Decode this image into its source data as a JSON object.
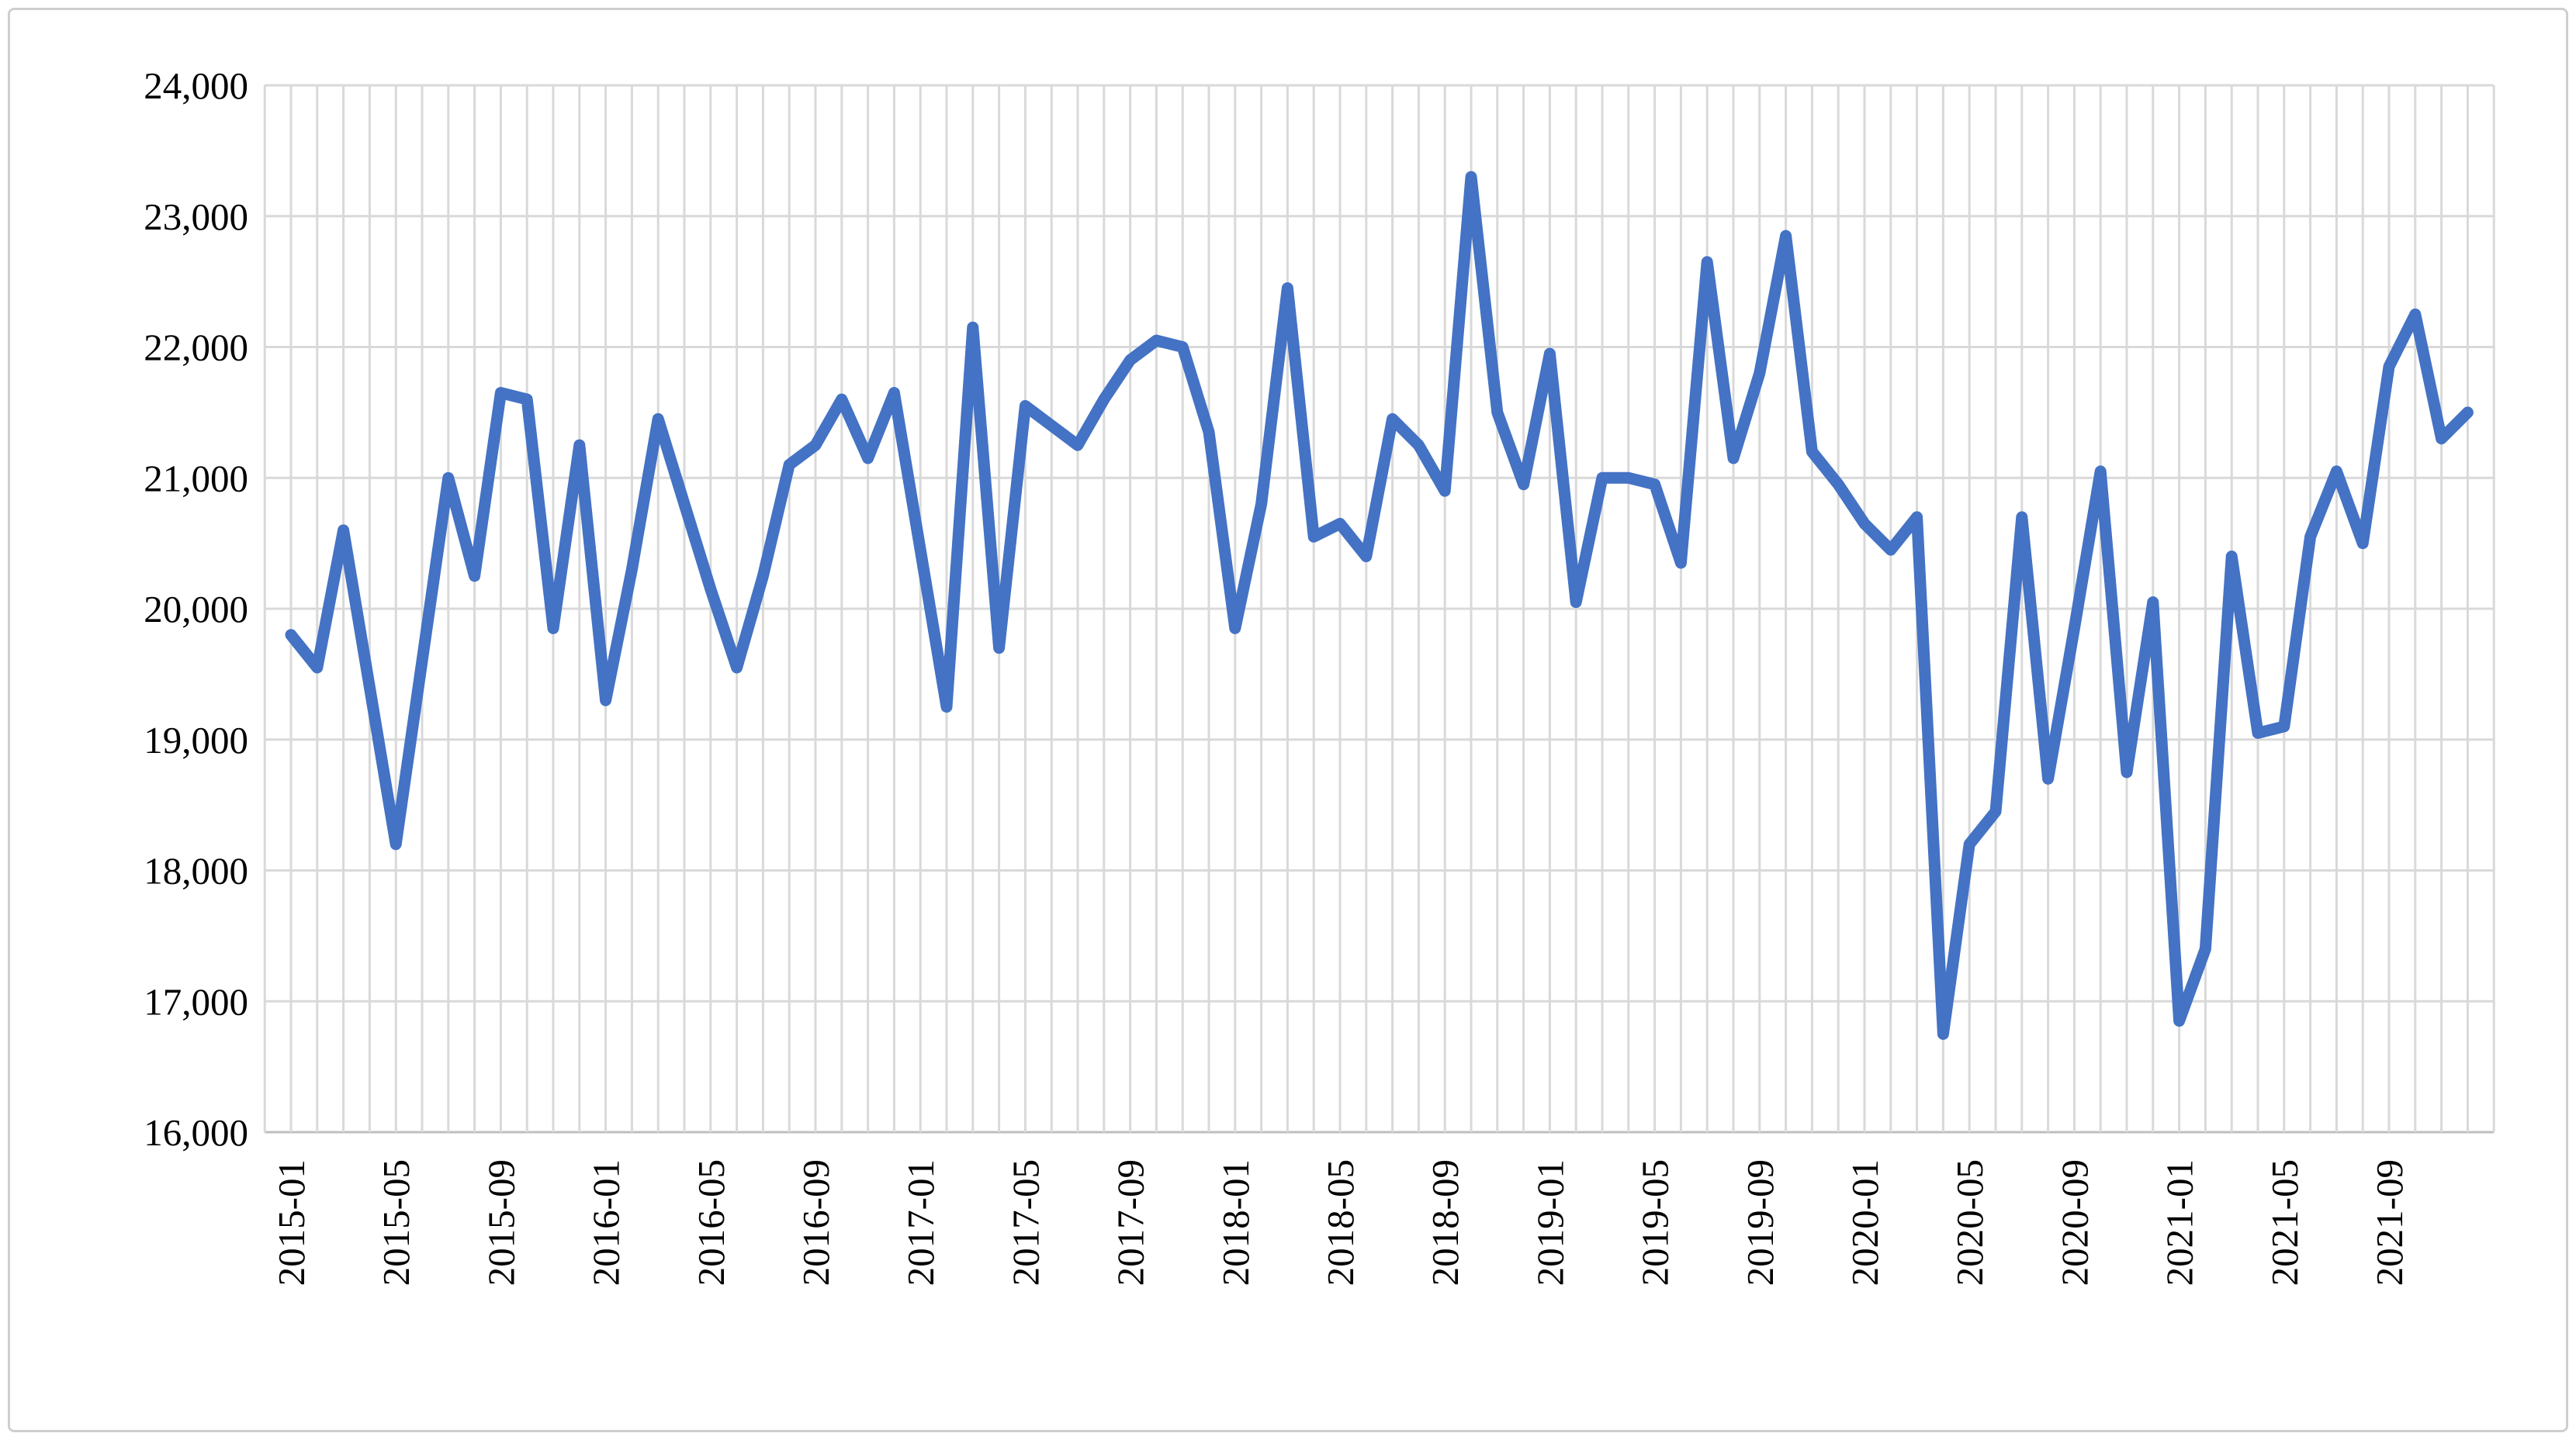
{
  "chart_data": {
    "type": "line",
    "title": "",
    "xlabel": "",
    "ylabel": "",
    "x": [
      "2015-01",
      "2015-02",
      "2015-03",
      "2015-04",
      "2015-05",
      "2015-06",
      "2015-07",
      "2015-08",
      "2015-09",
      "2015-10",
      "2015-11",
      "2015-12",
      "2016-01",
      "2016-02",
      "2016-03",
      "2016-04",
      "2016-05",
      "2016-06",
      "2016-07",
      "2016-08",
      "2016-09",
      "2016-10",
      "2016-11",
      "2016-12",
      "2017-01",
      "2017-02",
      "2017-03",
      "2017-04",
      "2017-05",
      "2017-06",
      "2017-07",
      "2017-08",
      "2017-09",
      "2017-10",
      "2017-11",
      "2017-12",
      "2018-01",
      "2018-02",
      "2018-03",
      "2018-04",
      "2018-05",
      "2018-06",
      "2018-07",
      "2018-08",
      "2018-09",
      "2018-10",
      "2018-11",
      "2018-12",
      "2019-01",
      "2019-02",
      "2019-03",
      "2019-04",
      "2019-05",
      "2019-06",
      "2019-07",
      "2019-08",
      "2019-09",
      "2019-10",
      "2019-11",
      "2019-12",
      "2020-01",
      "2020-02",
      "2020-03",
      "2020-04",
      "2020-05",
      "2020-06",
      "2020-07",
      "2020-08",
      "2020-09",
      "2020-10",
      "2020-11",
      "2020-12",
      "2021-01",
      "2021-02",
      "2021-03",
      "2021-04",
      "2021-05",
      "2021-06",
      "2021-07",
      "2021-08",
      "2021-09",
      "2021-10",
      "2021-11",
      "2021-12"
    ],
    "values": [
      19800,
      19550,
      20600,
      19400,
      18200,
      19600,
      21000,
      20250,
      21650,
      21600,
      19850,
      21250,
      19300,
      20300,
      21450,
      20800,
      20150,
      19550,
      20250,
      21100,
      21250,
      21600,
      21150,
      21650,
      20450,
      19250,
      22150,
      19700,
      21550,
      21400,
      21250,
      21600,
      21900,
      22050,
      22000,
      21350,
      19850,
      20800,
      22450,
      20550,
      20650,
      20400,
      21450,
      21250,
      20900,
      23300,
      21500,
      20950,
      21950,
      20050,
      21000,
      21000,
      20950,
      20350,
      22650,
      21150,
      21800,
      22850,
      21200,
      20950,
      20650,
      20450,
      20700,
      16750,
      18200,
      18450,
      20700,
      18700,
      19850,
      21050,
      18750,
      20050,
      16850,
      17400,
      20400,
      19050,
      19100,
      20550,
      21050,
      20500,
      21850,
      22250,
      21300,
      21500
    ],
    "ylim": [
      16000,
      24000
    ],
    "ytick_step": 1000,
    "ytick_labels": [
      "16,000",
      "17,000",
      "18,000",
      "19,000",
      "20,000",
      "21,000",
      "22,000",
      "23,000",
      "24,000"
    ],
    "xtick_every": 4,
    "xtick_labels": [
      "2015-01",
      "2015-05",
      "2015-09",
      "2016-01",
      "2016-05",
      "2016-09",
      "2017-01",
      "2017-05",
      "2017-09",
      "2018-01",
      "2018-05",
      "2018-09",
      "2019-01",
      "2019-05",
      "2019-09",
      "2020-01",
      "2020-05",
      "2020-09",
      "2021-01",
      "2021-05",
      "2021-09"
    ],
    "grid": true,
    "legend": "none",
    "line_color": "#4472C4",
    "gridline_color": "#d9d9d9",
    "tick_label_color": "#000000",
    "background_color": "#ffffff"
  }
}
